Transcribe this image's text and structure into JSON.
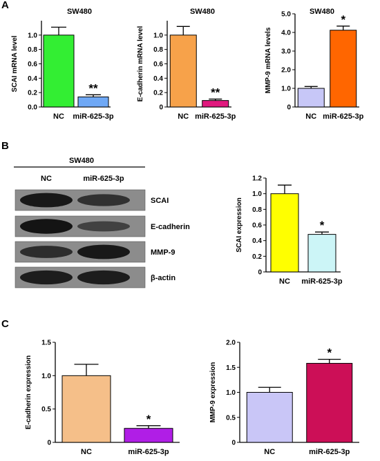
{
  "panels": {
    "a": "A",
    "b": "B",
    "c": "C"
  },
  "blot": {
    "cell_line": "SW480",
    "lanes": [
      "NC",
      "miR-625-3p"
    ],
    "rows": [
      {
        "label": "SCAI",
        "bands": [
          0.9,
          0.6
        ]
      },
      {
        "label": "E-cadherin",
        "bands": [
          0.95,
          0.4
        ]
      },
      {
        "label": "MMP-9",
        "bands": [
          0.65,
          0.9
        ]
      },
      {
        "label": "β-actin",
        "bands": [
          0.85,
          0.85
        ]
      }
    ]
  },
  "chart_data": [
    {
      "type": "bar",
      "title": "SW480",
      "ylabel": "SCAI mRNA level",
      "categories": [
        "NC",
        "miR-625-3p"
      ],
      "values": [
        1.0,
        0.14
      ],
      "errors": [
        0.11,
        0.03
      ],
      "colors": [
        "#33ee33",
        "#6fa8f5"
      ],
      "annotations": [
        "",
        "**"
      ],
      "ylim": [
        0,
        1.2
      ],
      "yticks": [
        0,
        0.2,
        0.4,
        0.6,
        0.8,
        1.0
      ],
      "tick_labels": [
        "0.0",
        "0.2",
        "0.4",
        "0.6",
        "0.8",
        "1.0"
      ]
    },
    {
      "type": "bar",
      "title": "SW480",
      "ylabel": "E-cadherin mRNA level",
      "categories": [
        "NC",
        "miR-625-3p"
      ],
      "values": [
        1.0,
        0.09
      ],
      "errors": [
        0.12,
        0.02
      ],
      "colors": [
        "#f7a24a",
        "#e0197e"
      ],
      "annotations": [
        "",
        "**"
      ],
      "ylim": [
        0,
        1.2
      ],
      "yticks": [
        0,
        0.2,
        0.4,
        0.6,
        0.8,
        1.0
      ],
      "tick_labels": [
        "0",
        "0.2",
        "0.4",
        "0.6",
        "0.8",
        "1.0"
      ]
    },
    {
      "type": "bar",
      "title": "SW480",
      "ylabel": "MMP-9 mRNA levels",
      "categories": [
        "NC",
        "miR-625-3p"
      ],
      "values": [
        1.0,
        4.12
      ],
      "errors": [
        0.1,
        0.22
      ],
      "colors": [
        "#c7c7f7",
        "#ff6600"
      ],
      "annotations": [
        "",
        "*"
      ],
      "ylim": [
        0,
        5
      ],
      "yticks": [
        0,
        1,
        2,
        3,
        4,
        5
      ],
      "tick_labels": [
        "0",
        "1.0",
        "2.0",
        "3.0",
        "4.0",
        "5.0"
      ]
    },
    {
      "type": "bar",
      "title": "",
      "ylabel": "SCAI expression",
      "categories": [
        "NC",
        "miR-625-3p"
      ],
      "values": [
        1.0,
        0.48
      ],
      "errors": [
        0.11,
        0.03
      ],
      "colors": [
        "#ffff00",
        "#ccf5f7"
      ],
      "annotations": [
        "",
        "*"
      ],
      "ylim": [
        0,
        1.2
      ],
      "yticks": [
        0,
        0.2,
        0.4,
        0.6,
        0.8,
        1.0,
        1.2
      ],
      "tick_labels": [
        "0",
        "0.2",
        "0.4",
        "0.6",
        "0.8",
        "1.0",
        "1.2"
      ]
    },
    {
      "type": "bar",
      "title": "",
      "ylabel": "E-cadherin expression",
      "categories": [
        "NC",
        "miR-625-3p"
      ],
      "values": [
        1.0,
        0.21
      ],
      "errors": [
        0.17,
        0.04
      ],
      "colors": [
        "#f5bf89",
        "#b01ee6"
      ],
      "annotations": [
        "",
        "*"
      ],
      "ylim": [
        0,
        1.5
      ],
      "yticks": [
        0,
        0.5,
        1.0,
        1.5
      ],
      "tick_labels": [
        "0",
        "0.5",
        "1.0",
        "1.5"
      ]
    },
    {
      "type": "bar",
      "title": "",
      "ylabel": "MMP-9 expression",
      "categories": [
        "NC",
        "miR-625-3p"
      ],
      "values": [
        1.0,
        1.58
      ],
      "errors": [
        0.1,
        0.08
      ],
      "colors": [
        "#c9c6f7",
        "#cc0f57"
      ],
      "annotations": [
        "",
        "*"
      ],
      "ylim": [
        0,
        2.0
      ],
      "yticks": [
        0,
        0.5,
        1.0,
        1.5,
        2.0
      ],
      "tick_labels": [
        "0",
        "0.5",
        "1.0",
        "1.5",
        "2.0"
      ]
    }
  ]
}
